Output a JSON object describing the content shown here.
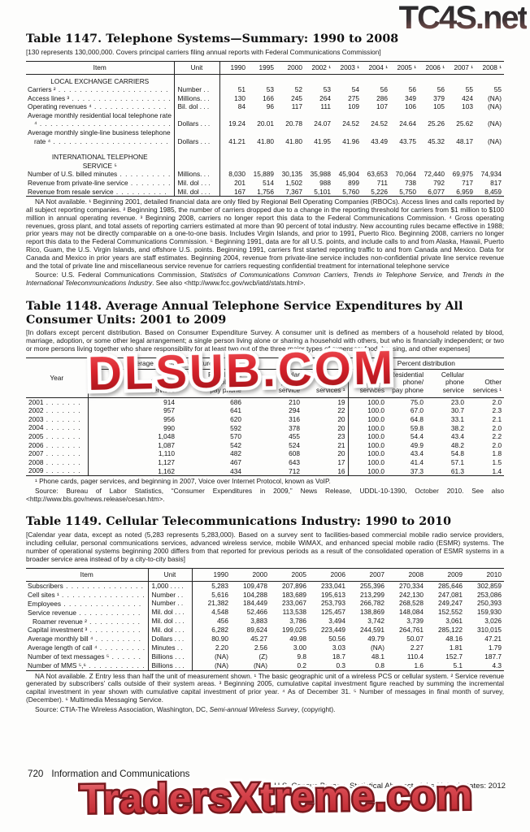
{
  "watermarks": {
    "top": "TC4S.net",
    "middle": "DLSUB.COM",
    "bottom": "TradersXtreme.com",
    "red_color": "#c8232b",
    "dark_color": "#3a3134"
  },
  "page_footer": {
    "page_number": "720",
    "section_title": "Information and Communications",
    "edition_line": "U.S. Census Bureau, Statistical Abstract of the United States: 2012"
  },
  "table1147": {
    "title": "Table 1147. Telephone Systems—Summary: 1990 to 2008",
    "bracket_note": "[130 represents 130,000,000. Covers principal carriers filing annual reports with Federal Communications Commission]",
    "item_header": "Item",
    "unit_header": "Unit",
    "year_headers": [
      "1990",
      "1995",
      "2000",
      "2002 ¹",
      "2003 ¹",
      "2004 ¹",
      "2005 ¹",
      "2006 ¹",
      "2007 ¹",
      "2008 ¹"
    ],
    "rows": [
      {
        "section": [
          "LOCAL EXCHANGE CARRIERS"
        ]
      },
      {
        "label": "Carriers ²",
        "unit": "Number . .",
        "values": [
          "51",
          "53",
          "52",
          "53",
          "54",
          "56",
          "56",
          "56",
          "55",
          "55"
        ]
      },
      {
        "label": "Access lines ³",
        "unit": "Millions. . .",
        "values": [
          "130",
          "166",
          "245",
          "264",
          "275",
          "286",
          "349",
          "379",
          "424",
          "(NA)"
        ]
      },
      {
        "label": "Operating revenues ⁴",
        "unit": "Bil. dol . . .",
        "values": [
          "84",
          "96",
          "117",
          "111",
          "109",
          "107",
          "106",
          "105",
          "103",
          "(NA)"
        ]
      },
      {
        "label": "Average monthly residential local telephone rate ⁴",
        "wrap": true,
        "unit": "Dollars . . .",
        "values": [
          "19.24",
          "20.01",
          "20.78",
          "24.07",
          "24.52",
          "24.52",
          "24.64",
          "25.26",
          "25.62",
          "(NA)"
        ]
      },
      {
        "label": "Average monthly single-line business telephone rate ⁴",
        "wrap": true,
        "unit": "Dollars . . .",
        "values": [
          "41.21",
          "41.80",
          "41.80",
          "41.95",
          "41.96",
          "43.49",
          "43.75",
          "45.32",
          "48.17",
          "(NA)"
        ]
      },
      {
        "section": [
          "INTERNATIONAL TELEPHONE",
          "SERVICE ⁵"
        ],
        "gap": true
      },
      {
        "label": "Number of U.S. billed minutes",
        "unit": "Millions. . .",
        "values": [
          "8,030",
          "15,889",
          "30,135",
          "35,988",
          "45,904",
          "63,653",
          "70,064",
          "72,440",
          "69,975",
          "74,934"
        ]
      },
      {
        "label": "Revenue from private-line service",
        "unit": "Mil. dol . . .",
        "values": [
          "201",
          "514",
          "1,502",
          "988",
          "899",
          "711",
          "738",
          "792",
          "717",
          "817"
        ]
      },
      {
        "label": "Revenue from resale service",
        "unit": "Mil. dol . . .",
        "values": [
          "167",
          "1,756",
          "7,367",
          "5,101",
          "5,760",
          "5,226",
          "5,750",
          "6,077",
          "6,959",
          "8,459"
        ]
      }
    ],
    "footnotes": "NA Not available. ¹ Beginning 2001, detailed financial data are only filed by Regional Bell Operating Companies (RBOCs). Access lines and calls reported by all subject reporting companies. ² Beginning 1985, the number of carriers dropped due to a change in the reporting threshold for carriers from $1 million to $100 million in annual operating revenue. ³ Beginning 2008, carriers no longer report this data to the Federal Communications Commission. ⁴ Gross operating revenues, gross plant, and total assets of reporting carriers estimated at more than 90 percent of total industry. New accounting rules became effective in 1988; prior years may not be directly comparable on a one-to-one basis. Includes Virgin Islands, and prior to 1991, Puerto Rico. Beginning 2008, carriers no longer report this data to the Federal Communications Commission. ⁵ Beginning 1991, data are for all U.S. points, and include calls to and from Alaska,  Hawaii, Puerto Rico, Guam, the U.S. Virgin Islands,  and offshore U.S. points. Beginning 1991, carriers first started reporting traffic to and from Canada and Mexico. Data for Canada and Mexico in prior years are staff estimates. Beginning 2004, revenue from  private-line service includes non-confidential private line service revenue and the total of private line and miscellaneous service revenue for carriers requesting confidential treatment for international telephone service",
    "source_segments": [
      {
        "t": "Source: U.S. Federal Communications Commission, "
      },
      {
        "t": "Statistics of Communications Common Carriers, Trends in Telephone Service,",
        "i": true
      },
      {
        "t": " and "
      },
      {
        "t": "Trends in the International Telecommunications Industry",
        "i": true
      },
      {
        "t": ". See also <http://www.fcc.gov/wcb/iatd/stats.html>."
      }
    ]
  },
  "table1148": {
    "title": "Table 1148. Average Annual Telephone Service Expenditures by All Consumer Units: 2001 to 2009",
    "bracket_note": "[In dollars except percent distribution. Based on Consumer Expenditure Survey. A consumer unit is defined as members of a household related by blood, marriage, adoption, or some other legal arrangement; a single person living alone or sharing a household with others, but who is financially independent; or two or more persons living together who share responsibility for at least two out of the three major types of expenses: food, housing, and other expenses]",
    "year_header": "Year",
    "group_headers": [
      "Average annual expenditures",
      "Percent distribution"
    ],
    "sub_headers": [
      [
        "Total",
        "telephone",
        "services"
      ],
      [
        "Residential",
        "phone/",
        "pay phone"
      ],
      [
        "Cellular",
        "phone",
        "service"
      ],
      [
        "Other",
        "services ¹"
      ],
      [
        "Total",
        "telephone",
        "services"
      ],
      [
        "Residential",
        "phone/",
        "pay phone"
      ],
      [
        "Cellular",
        "phone",
        "service"
      ],
      [
        "Other",
        "services ¹"
      ]
    ],
    "rows": [
      {
        "year": "2001",
        "values": [
          "914",
          "686",
          "210",
          "19",
          "100.0",
          "75.0",
          "23.0",
          "2.0"
        ]
      },
      {
        "year": "2002",
        "values": [
          "957",
          "641",
          "294",
          "22",
          "100.0",
          "67.0",
          "30.7",
          "2.3"
        ]
      },
      {
        "year": "2003",
        "values": [
          "956",
          "620",
          "316",
          "20",
          "100.0",
          "64.8",
          "33.1",
          "2.1"
        ]
      },
      {
        "year": "2004",
        "values": [
          "990",
          "592",
          "378",
          "20",
          "100.0",
          "59.8",
          "38.2",
          "2.0"
        ]
      },
      {
        "year": "2005",
        "values": [
          "1,048",
          "570",
          "455",
          "23",
          "100.0",
          "54.4",
          "43.4",
          "2.2"
        ]
      },
      {
        "year": "2006",
        "values": [
          "1,087",
          "542",
          "524",
          "21",
          "100.0",
          "49.9",
          "48.2",
          "2.0"
        ]
      },
      {
        "year": "2007",
        "values": [
          "1,110",
          "482",
          "608",
          "20",
          "100.0",
          "43.4",
          "54.8",
          "1.8"
        ]
      },
      {
        "year": "2008",
        "values": [
          "1,127",
          "467",
          "643",
          "17",
          "100.0",
          "41.4",
          "57.1",
          "1.5"
        ]
      },
      {
        "year": "2009",
        "values": [
          "1,162",
          "434",
          "712",
          "16",
          "100.0",
          "37.3",
          "61.3",
          "1.4"
        ]
      }
    ],
    "footnotes": "¹ Phone cards, pager services, and beginning in 2007, Voice over Internet Protocol, known as VoIP.",
    "source_segments": [
      {
        "t": "Source: Bureau of Labor Statistics, “Consumer Expenditures in 2009,” News Release, UDDL-10-1390, October 2010. See also <http://www.bls.gov/news.release/cesan.htm>."
      }
    ]
  },
  "table1149": {
    "title": "Table 1149. Cellular Telecommunications Industry: 1990 to 2010",
    "bracket_note": "[Calendar year data, except as noted (5,283 represents 5,283,000). Based on a survey sent to facilities-based commercial mobile radio service providers, including cellular, personal communications services, advanced wireless service, mobile WiMAX, and enhanced special mobile radio (ESMR) systems. The number of operational systems beginning 2000 differs from that reported for previous periods as a  result of the consolidated operation of ESMR systems in a broader service area instead of by a city-to-city basis]",
    "item_header": "Item",
    "unit_header": "Unit",
    "year_headers": [
      "1990",
      "2000",
      "2005",
      "2006",
      "2007",
      "2008",
      "2009",
      "2010"
    ],
    "rows": [
      {
        "label": "Subscribers",
        "unit": "1,000 . . . .",
        "values": [
          "5,283",
          "109,478",
          "207,896",
          "233,041",
          "255,396",
          "270,334",
          "285,646",
          "302,859"
        ]
      },
      {
        "label": "Cell sites ¹",
        "unit": "Number . .",
        "values": [
          "5,616",
          "104,288",
          "183,689",
          "195,613",
          "213,299",
          "242,130",
          "247,081",
          "253,086"
        ]
      },
      {
        "label": "Employees",
        "unit": "Number . .",
        "values": [
          "21,382",
          "184,449",
          "233,067",
          "253,793",
          "266,782",
          "268,528",
          "249,247",
          "250,393"
        ]
      },
      {
        "label": "Service revenue",
        "unit": "Mil. dol . . .",
        "values": [
          "4,548",
          "52,466",
          "113,538",
          "125,457",
          "138,869",
          "148,084",
          "152,552",
          "159,930"
        ]
      },
      {
        "label": "Roamer revenue ²",
        "indent": true,
        "unit": "Mil. dol . . .",
        "values": [
          "456",
          "3,883",
          "3,786",
          "3,494",
          "3,742",
          "3,739",
          "3,061",
          "3,026"
        ]
      },
      {
        "label": "Capital investment ³",
        "unit": "Mil. dol . . .",
        "values": [
          "6,282",
          "89,624",
          "199,025",
          "223,449",
          "244,591",
          "264,761",
          "285,122",
          "310,015"
        ]
      },
      {
        "label": "Average monthly bill ⁴",
        "unit": "Dollars . . .",
        "values": [
          "80.90",
          "45.27",
          "49.98",
          "50.56",
          "49.79",
          "50.07",
          "48.16",
          "47.21"
        ]
      },
      {
        "label": "Average length of call ⁴",
        "unit": "Minutes . .",
        "values": [
          "2.20",
          "2.56",
          "3.00",
          "3.03",
          "(NA)",
          "2.27",
          "1.81",
          "1.79"
        ]
      },
      {
        "label": "Number of text messages ⁵",
        "unit": "Billions . . .",
        "values": [
          "(NA)",
          "(Z)",
          "9.8",
          "18.7",
          "48.1",
          "110.4",
          "152.7",
          "187.7"
        ]
      },
      {
        "label": "Number of MMS ⁵,⁶",
        "unit": "Billions . . .",
        "values": [
          "(NA)",
          "(NA)",
          "0.2",
          "0.3",
          "0.8",
          "1.6",
          "5.1",
          "4.3"
        ]
      }
    ],
    "footnotes": "NA Not available. Z Entry less than half the unit of measurement shown. ¹ The basic geographic unit of a wireless PCS or cellular system.  ² Service revenue generated by subscribers’ calls outside of their  system areas. ³ Beginning 2005, cumulative capital investment figure reached by summing the incremental capital investment in year shown with cumulative capital investment of prior year. ⁴ As of December 31. ⁵ Number of messages in final month of survey, (December). ⁶ Multimedia Messaging Service.",
    "source_segments": [
      {
        "t": "Source: CTIA-The Wireless Association, Washington, DC, "
      },
      {
        "t": "Semi-annual Wireless Survey",
        "i": true
      },
      {
        "t": ", (copyright)."
      }
    ]
  }
}
